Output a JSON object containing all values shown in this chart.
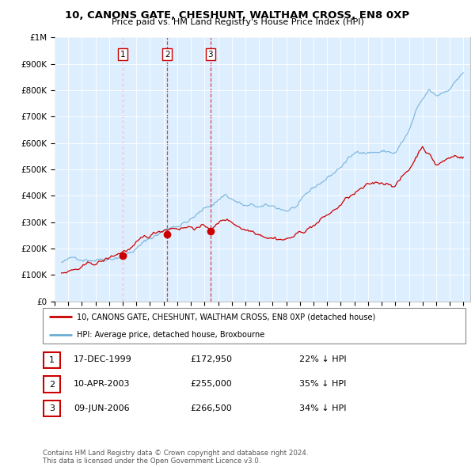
{
  "title": "10, CANONS GATE, CHESHUNT, WALTHAM CROSS, EN8 0XP",
  "subtitle": "Price paid vs. HM Land Registry's House Price Index (HPI)",
  "ylim": [
    0,
    1000000
  ],
  "yticks": [
    0,
    100000,
    200000,
    300000,
    400000,
    500000,
    600000,
    700000,
    800000,
    900000,
    1000000
  ],
  "ytick_labels": [
    "£0",
    "£100K",
    "£200K",
    "£300K",
    "£400K",
    "£500K",
    "£600K",
    "£700K",
    "£800K",
    "£900K",
    "£1M"
  ],
  "hpi_color": "#6baed6",
  "price_color": "#cc0000",
  "vline_color": "#cc0000",
  "chart_bg": "#ddeeff",
  "sale_points": [
    {
      "year": 2000.0,
      "price": 172950,
      "label": "1"
    },
    {
      "year": 2003.27,
      "price": 255000,
      "label": "2"
    },
    {
      "year": 2006.44,
      "price": 266500,
      "label": "3"
    }
  ],
  "table_rows": [
    {
      "num": "1",
      "date": "17-DEC-1999",
      "price": "£172,950",
      "pct": "22% ↓ HPI"
    },
    {
      "num": "2",
      "date": "10-APR-2003",
      "price": "£255,000",
      "pct": "35% ↓ HPI"
    },
    {
      "num": "3",
      "date": "09-JUN-2006",
      "price": "£266,500",
      "pct": "34% ↓ HPI"
    }
  ],
  "legend_line1": "10, CANONS GATE, CHESHUNT, WALTHAM CROSS, EN8 0XP (detached house)",
  "legend_line2": "HPI: Average price, detached house, Broxbourne",
  "footer": "Contains HM Land Registry data © Crown copyright and database right 2024.\nThis data is licensed under the Open Government Licence v3.0.",
  "xlim_start": 1995.0,
  "xlim_end": 2025.5
}
